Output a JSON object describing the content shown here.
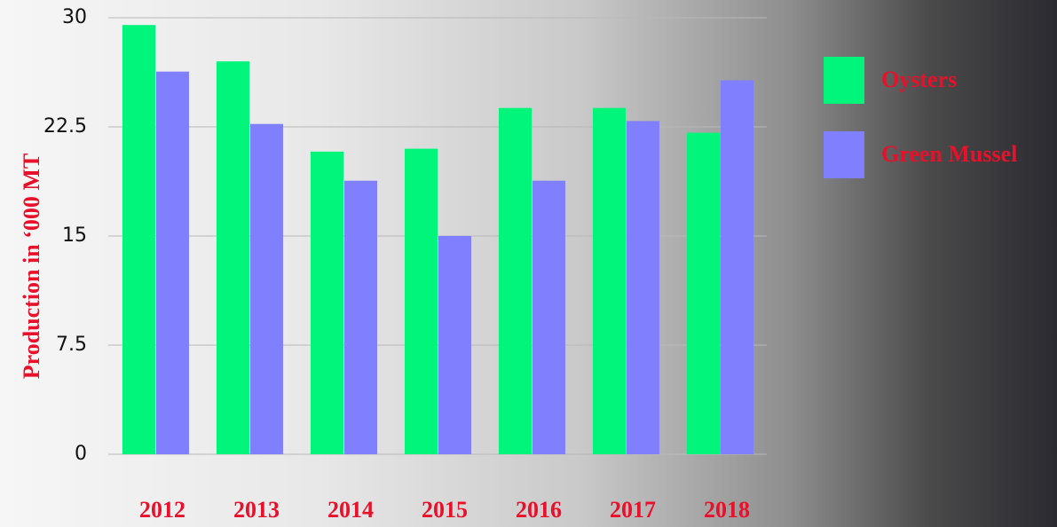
{
  "chart_data": {
    "type": "bar",
    "y_label": "Production in ‘000 MT",
    "categories": [
      "2012",
      "2013",
      "2014",
      "2015",
      "2016",
      "2017",
      "2018"
    ],
    "series": [
      {
        "name": "Oysters",
        "color": "#00f57a",
        "values": [
          29.5,
          27.0,
          20.8,
          21.0,
          23.8,
          23.8,
          22.1
        ]
      },
      {
        "name": "Green Mussel",
        "color": "#8080ff",
        "values": [
          26.3,
          22.7,
          18.8,
          15.0,
          18.8,
          22.9,
          25.7
        ]
      }
    ],
    "ylim": [
      0,
      30
    ],
    "yticks": [
      0,
      7.5,
      15,
      22.5,
      30
    ],
    "grid": true,
    "legend": "right"
  }
}
